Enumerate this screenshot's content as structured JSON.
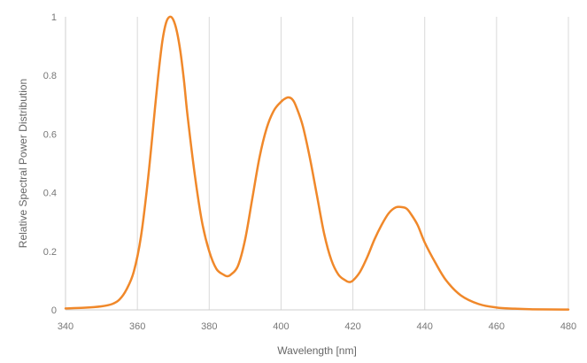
{
  "chart_data": {
    "type": "line",
    "title": "",
    "xlabel": "Wavelength [nm]",
    "ylabel": "Relative Spectral Power Distribution",
    "xlim": [
      340,
      480
    ],
    "ylim": [
      0,
      1
    ],
    "x_ticks": [
      "340",
      "360",
      "380",
      "400",
      "420",
      "440",
      "460",
      "480"
    ],
    "y_ticks": [
      "0",
      "0.2",
      "0.4",
      "0.6",
      "0.8",
      "1"
    ],
    "grid": "vertical",
    "line_color": "#F0882A",
    "series": [
      {
        "x": [
          340,
          345,
          350,
          353,
          355,
          357,
          359,
          361,
          363,
          365,
          366,
          367,
          368,
          369,
          370,
          371,
          372,
          373,
          374,
          376,
          378,
          380,
          382,
          384,
          385,
          386,
          388,
          390,
          392,
          394,
          396,
          398,
          400,
          401,
          402,
          403,
          404,
          406,
          408,
          410,
          412,
          414,
          416,
          418,
          419,
          420,
          422,
          424,
          426,
          428,
          430,
          432,
          434,
          435,
          436,
          438,
          440,
          443,
          446,
          450,
          455,
          460,
          465,
          470,
          480
        ],
        "y": [
          0.005,
          0.007,
          0.012,
          0.02,
          0.035,
          0.07,
          0.13,
          0.25,
          0.45,
          0.7,
          0.82,
          0.92,
          0.98,
          1.0,
          0.99,
          0.95,
          0.88,
          0.78,
          0.66,
          0.46,
          0.3,
          0.2,
          0.14,
          0.12,
          0.115,
          0.12,
          0.15,
          0.24,
          0.38,
          0.52,
          0.62,
          0.68,
          0.71,
          0.72,
          0.725,
          0.72,
          0.7,
          0.63,
          0.52,
          0.39,
          0.26,
          0.17,
          0.12,
          0.1,
          0.095,
          0.1,
          0.13,
          0.18,
          0.24,
          0.29,
          0.33,
          0.35,
          0.35,
          0.345,
          0.33,
          0.29,
          0.23,
          0.16,
          0.1,
          0.05,
          0.02,
          0.008,
          0.004,
          0.002,
          0.001
        ]
      }
    ]
  }
}
